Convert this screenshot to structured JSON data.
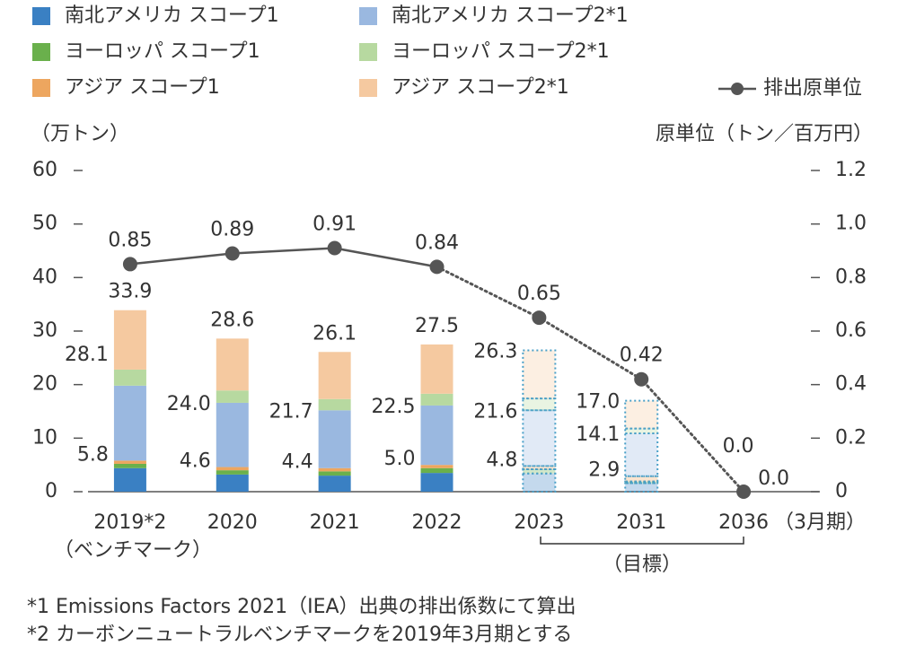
{
  "chart_data": {
    "type": "bar",
    "categories": [
      "2019*2",
      "2020",
      "2021",
      "2022",
      "2023",
      "2031",
      "2036"
    ],
    "category_note": "（ベンチマーク）",
    "x_unit": "（3月期）",
    "target_label": "（目標）",
    "y_title": "（万トン）",
    "y2_title": "原単位（トン／百万円）",
    "ylim": [
      0,
      60
    ],
    "yticks": [
      0,
      10,
      20,
      30,
      40,
      50,
      60
    ],
    "y2lim": [
      0,
      1.2
    ],
    "y2ticks": [
      0,
      0.2,
      0.4,
      0.6,
      0.8,
      {
        "value": 1,
        "label": "1.0"
      },
      1.2
    ],
    "forecast_start": 4,
    "series": [
      {
        "name": "南北アメリカ スコープ1",
        "color": "#3a80c3",
        "values": [
          4.4,
          3.2,
          3.0,
          3.5,
          3.4,
          1.6,
          0
        ]
      },
      {
        "name": "ヨーロッパ スコープ1",
        "color": "#6ab04c",
        "values": [
          0.8,
          0.8,
          0.8,
          0.9,
          0.8,
          0.3,
          0
        ]
      },
      {
        "name": "アジア スコープ1",
        "color": "#eda65f",
        "values": [
          0.6,
          0.6,
          0.6,
          0.6,
          0.6,
          1.0,
          0
        ]
      },
      {
        "name": "南北アメリカ スコープ2*1",
        "color": "#9ab8e0",
        "values": [
          14.0,
          12.0,
          10.8,
          11.1,
          10.4,
          8.0,
          0
        ]
      },
      {
        "name": "ヨーロッパ スコープ2*1",
        "color": "#b7d9a0",
        "values": [
          3.0,
          2.3,
          2.1,
          2.2,
          2.2,
          0.9,
          0
        ]
      },
      {
        "name": "アジア スコープ2*1",
        "color": "#f5c9a0",
        "values": [
          11.1,
          9.7,
          8.8,
          9.2,
          9.0,
          5.2,
          0
        ]
      },
      {
        "name": "排出原単位",
        "type": "line",
        "axis": "y2",
        "color": "#555555",
        "values": [
          0.85,
          0.89,
          0.91,
          0.84,
          0.65,
          0.42,
          0
        ],
        "value_labels": [
          "0.85",
          "0.89",
          "0.91",
          "0.84",
          "0.65",
          "0.42",
          "0.0"
        ]
      }
    ],
    "total_labels": [
      "33.9",
      "28.6",
      "26.1",
      "27.5",
      "26.3",
      "17.0",
      "0.0"
    ],
    "scope2_labels": [
      "28.1",
      "24.0",
      "21.7",
      "22.5",
      "21.6",
      "14.1",
      null
    ],
    "scope1_labels": [
      "5.8",
      "4.6",
      "4.4",
      "5.0",
      "4.8",
      "2.9",
      null
    ],
    "footnotes": [
      "*1 Emissions Factors 2021（IEA）出典の排出係数にて算出",
      "*2 カーボンニュートラルベンチマークを2019年3月期とする"
    ]
  }
}
